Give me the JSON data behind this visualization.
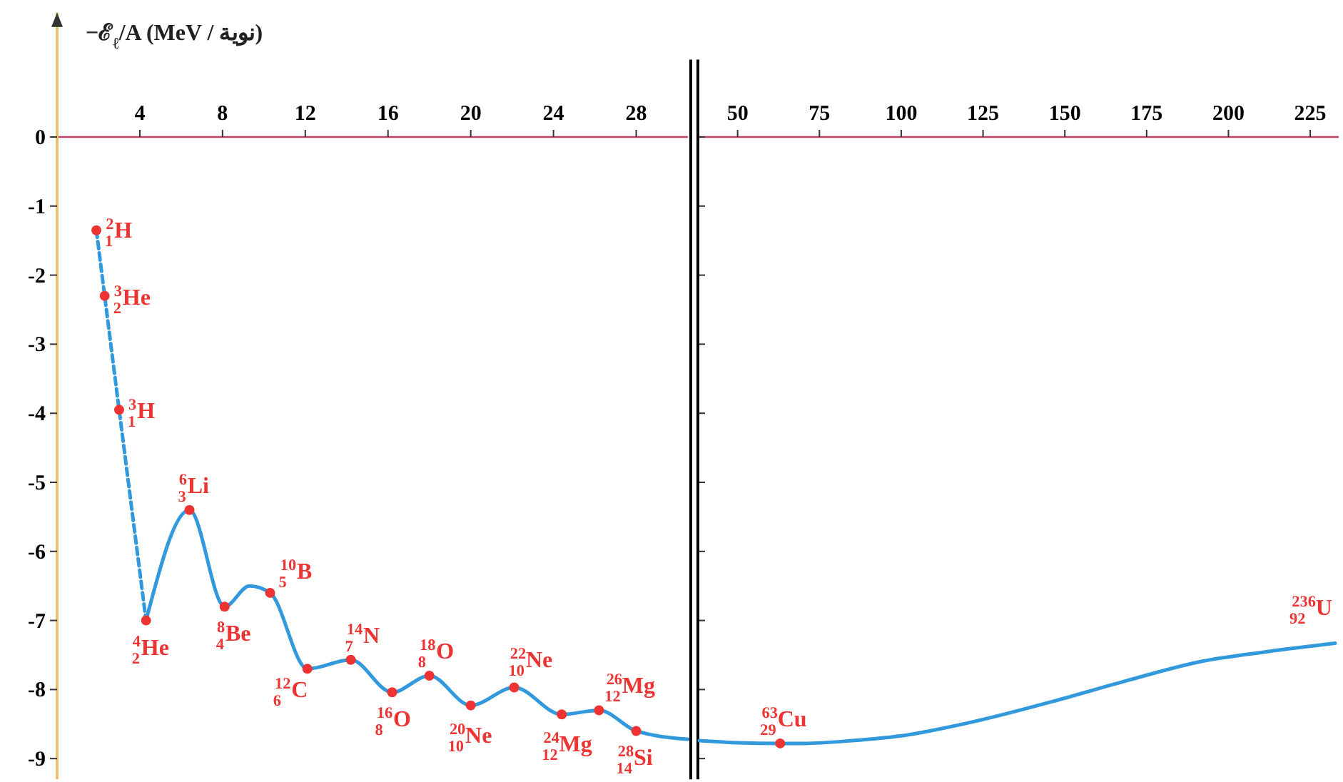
{
  "chart_data": [
    {
      "type": "line",
      "ylabel": "−ℰ$_{ℓ}$/A (MeV / نوية)",
      "xlim": [
        0,
        30.5
      ],
      "xticks": [
        4,
        8,
        12,
        16,
        20,
        24,
        28
      ],
      "ylim": [
        -9.3,
        1.8
      ],
      "yticks": [
        -9,
        -8,
        -7,
        -6,
        -5,
        -4,
        -3,
        -2,
        -1,
        0
      ],
      "grid": false,
      "series": [
        {
          "color": "#3399dd",
          "line_style": "dashed",
          "marker": "none",
          "x": [
            1.9,
            2.3,
            3.0,
            4.3
          ],
          "values": [
            -1.35,
            -2.3,
            -3.95,
            -7.0
          ]
        },
        {
          "color": "#3399dd",
          "line_style": "solid",
          "marker": "none",
          "x": [
            4.3,
            6.4,
            8.1,
            9.3,
            10.3,
            12.1,
            14.2,
            16.2,
            18.0,
            20.0,
            22.1,
            24.4,
            26.2,
            28.0,
            30.5
          ],
          "values": [
            -7.0,
            -5.4,
            -6.8,
            -6.5,
            -6.6,
            -7.7,
            -7.57,
            -8.04,
            -7.8,
            -8.23,
            -7.97,
            -8.36,
            -8.3,
            -8.6,
            -8.72
          ]
        },
        {
          "type": "scatter",
          "color": "#ee3333",
          "marker": "circle",
          "x": [
            1.9,
            2.3,
            3.0,
            4.3,
            6.4,
            8.1,
            10.3,
            12.1,
            14.2,
            16.2,
            18.0,
            20.0,
            22.1,
            24.4,
            26.2,
            28.0
          ],
          "values": [
            -1.35,
            -2.3,
            -3.95,
            -7.0,
            -5.4,
            -6.8,
            -6.6,
            -7.7,
            -7.57,
            -8.04,
            -7.8,
            -8.23,
            -7.97,
            -8.36,
            -8.3,
            -8.6
          ]
        }
      ],
      "annotations": [
        {
          "text": "$^{2}$$_{1}$H",
          "x": 1.9,
          "y": -1.35
        },
        {
          "text": "$^{3}$$_{2}$He",
          "x": 2.3,
          "y": -2.3
        },
        {
          "text": "$^{3}$$_{1}$H",
          "x": 3.0,
          "y": -3.95
        },
        {
          "text": "$^{4}$$_{2}$He",
          "x": 4.3,
          "y": -7.0
        },
        {
          "text": "$^{6}$$_{3}$Li",
          "x": 6.4,
          "y": -5.4
        },
        {
          "text": "$^{8}$$_{4}$Be",
          "x": 8.1,
          "y": -6.8
        },
        {
          "text": "$^{10}$$_{5}$B",
          "x": 10.3,
          "y": -6.6
        },
        {
          "text": "$^{12}$$_{6}$C",
          "x": 12.1,
          "y": -7.7
        },
        {
          "text": "$^{14}$$_{7}$N",
          "x": 14.2,
          "y": -7.57
        },
        {
          "text": "$^{16}$$_{8}$O",
          "x": 16.2,
          "y": -8.04
        },
        {
          "text": "$^{18}$$_{8}$O",
          "x": 18.0,
          "y": -7.8
        },
        {
          "text": "$^{20}$$_{10}$Ne",
          "x": 20.0,
          "y": -8.23
        },
        {
          "text": "$^{22}$$_{10}$Ne",
          "x": 22.1,
          "y": -7.97
        },
        {
          "text": "$^{24}$$_{12}$Mg",
          "x": 24.4,
          "y": -8.36
        },
        {
          "text": "$^{26}$$_{12}$Mg",
          "x": 26.2,
          "y": -8.3
        },
        {
          "text": "$^{28}$$_{14}$Si",
          "x": 28.0,
          "y": -8.6
        }
      ]
    },
    {
      "type": "line",
      "xlim": [
        38.3,
        233.7
      ],
      "xticks": [
        50,
        75,
        100,
        125,
        150,
        175,
        200,
        225
      ],
      "ylim": [
        -9.3,
        1.12
      ],
      "yticks": [
        -9,
        -8,
        -7,
        -6,
        -5,
        -4,
        -3,
        -2,
        -1,
        0
      ],
      "tick_labels": "x",
      "grid": false,
      "series": [
        {
          "color": "#3399dd",
          "line_style": "solid",
          "marker": "none",
          "x": [
            38.3,
            50,
            63,
            70.4,
            85,
            100,
            123.5,
            146.5,
            169,
            192,
            212,
            232.6
          ],
          "values": [
            -8.74,
            -8.77,
            -8.78,
            -8.78,
            -8.74,
            -8.67,
            -8.45,
            -8.17,
            -7.87,
            -7.59,
            -7.45,
            -7.33
          ]
        },
        {
          "type": "scatter",
          "color": "#ee3333",
          "marker": "circle",
          "x": [
            63
          ],
          "values": [
            -8.78
          ]
        }
      ],
      "annotations": [
        {
          "text": "$^{63}$$_{29}$Cu",
          "x": 63,
          "y": -8.78
        },
        {
          "text": "$^{236}$$_{92}$U",
          "x": 232.6,
          "y": -7.33
        }
      ]
    }
  ]
}
